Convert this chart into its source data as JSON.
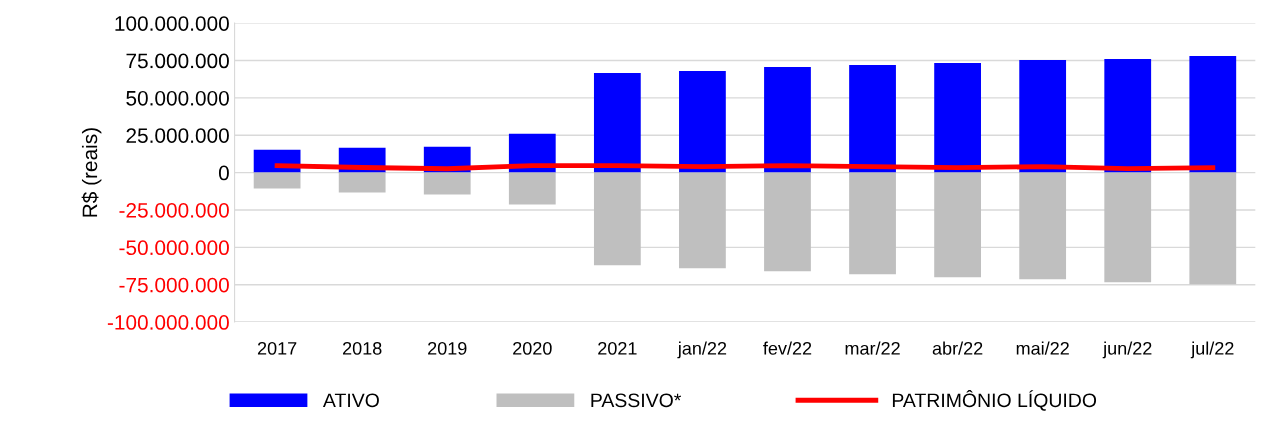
{
  "chart_data": {
    "type": "bar",
    "ylabel": "R$ (reais)",
    "categories": [
      "2017",
      "2018",
      "2019",
      "2020",
      "2021",
      "jan/22",
      "fev/22",
      "mar/22",
      "abr/22",
      "mai/22",
      "jun/22",
      "jul/22"
    ],
    "series": [
      {
        "name": "ATIVO",
        "color": "#0000ff",
        "values": [
          15300000,
          16700000,
          17300000,
          26000000,
          66700000,
          68000000,
          70700000,
          72000000,
          73300000,
          75300000,
          76000000,
          78000000
        ]
      },
      {
        "name": "PASSIVO*",
        "color": "#bfbfbf",
        "values": [
          -10700000,
          -13300000,
          -14700000,
          -21300000,
          -62000000,
          -64000000,
          -66000000,
          -68000000,
          -70000000,
          -71300000,
          -73300000,
          -74700000
        ]
      },
      {
        "name": "PATRIMÔNIO LÍQUIDO",
        "type": "line",
        "color": "#ff0000",
        "values": [
          4600000,
          3400000,
          2600000,
          4700000,
          4700000,
          4000000,
          4700000,
          4000000,
          3300000,
          4000000,
          2700000,
          3300000
        ]
      }
    ],
    "ylim": [
      -100000000,
      100000000
    ],
    "yticks": [
      {
        "value": -100000000,
        "label": "-100.000.000"
      },
      {
        "value": -75000000,
        "label": "-75.000.000"
      },
      {
        "value": -50000000,
        "label": "-50.000.000"
      },
      {
        "value": -25000000,
        "label": "-25.000.000"
      },
      {
        "value": 0,
        "label": "0"
      },
      {
        "value": 25000000,
        "label": "25.000.000"
      },
      {
        "value": 50000000,
        "label": "50.000.000"
      },
      {
        "value": 75000000,
        "label": "75.000.000"
      },
      {
        "value": 100000000,
        "label": "100.000.000"
      }
    ],
    "grid": "y",
    "legend": "bottom",
    "stacked": true
  }
}
